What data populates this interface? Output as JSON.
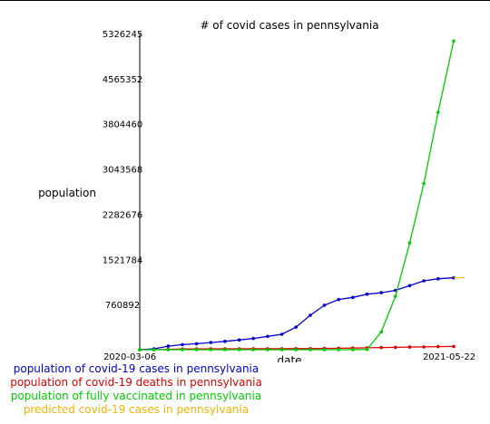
{
  "chart_data": {
    "type": "line",
    "title": "# of covid cases in pennsylvania",
    "xlabel": "date",
    "ylabel": "population",
    "x_tick_labels": [
      "2020-03-06",
      "2021-05-22"
    ],
    "y_ticks": [
      0,
      760892,
      1521784,
      2282676,
      3043568,
      3804460,
      4565352,
      5326245
    ],
    "y_tick_labels": [
      "760892",
      "1521784",
      "2282676",
      "3043568",
      "3804460",
      "4565352",
      "5326245"
    ],
    "ylim": [
      0,
      5326245
    ],
    "x": [
      "2020-03-06",
      "2020-03-26",
      "2020-04-15",
      "2020-05-05",
      "2020-05-25",
      "2020-06-14",
      "2020-07-04",
      "2020-07-24",
      "2020-08-13",
      "2020-09-02",
      "2020-09-22",
      "2020-10-12",
      "2020-11-01",
      "2020-11-21",
      "2020-12-11",
      "2020-12-31",
      "2021-01-20",
      "2021-02-09",
      "2021-03-01",
      "2021-03-21",
      "2021-04-10",
      "2021-04-30",
      "2021-05-22"
    ],
    "series": [
      {
        "name": "population of covid-19 cases in pennsylvania",
        "color": "#0000cc",
        "values": [
          0,
          16000,
          60000,
          85000,
          100000,
          120000,
          140000,
          165000,
          190000,
          225000,
          260000,
          380000,
          580000,
          750000,
          845000,
          880000,
          935000,
          960000,
          1000000,
          1080000,
          1160000,
          1195000,
          1210000
        ]
      },
      {
        "name": "population of covid-19 deaths in pennsylvania",
        "color": "#dd0000",
        "values": [
          0,
          1000,
          6000,
          12000,
          14000,
          15000,
          15500,
          16000,
          16500,
          17000,
          17500,
          18000,
          19000,
          22000,
          25000,
          28000,
          32000,
          36000,
          40000,
          44000,
          48000,
          52000,
          55000
        ]
      },
      {
        "name": "population of fully vaccinated in pennsylvania",
        "color": "#00cc00",
        "values": [
          0,
          0,
          0,
          0,
          0,
          0,
          0,
          0,
          0,
          0,
          0,
          0,
          0,
          0,
          0,
          0,
          5000,
          300000,
          900000,
          1800000,
          2800000,
          4000000,
          5200000
        ]
      },
      {
        "name": "predicted covid-19 cases in pennsylvania",
        "color": "#f5b400",
        "x": [
          "2021-05-22",
          "2021-06-06"
        ],
        "values": [
          1210000,
          1215000
        ]
      }
    ]
  }
}
